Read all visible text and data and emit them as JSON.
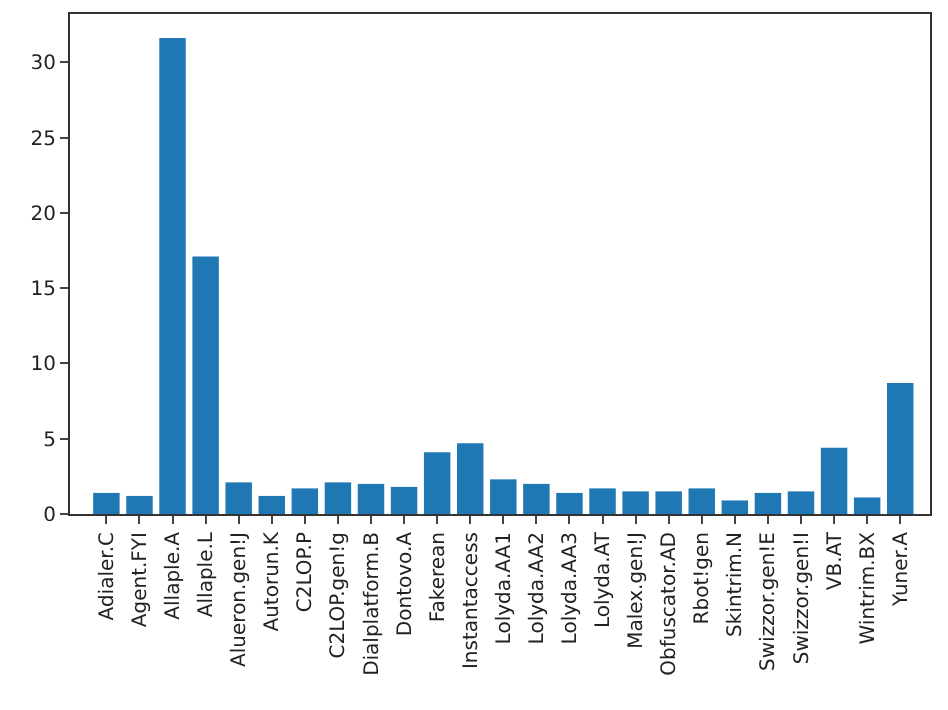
{
  "chart_data": {
    "type": "bar",
    "categories": [
      "Adialer.C",
      "Agent.FYI",
      "Allaple.A",
      "Allaple.L",
      "Alueron.gen!J",
      "Autorun.K",
      "C2LOP.P",
      "C2LOP.gen!g",
      "Dialplatform.B",
      "Dontovo.A",
      "Fakerean",
      "Instantaccess",
      "Lolyda.AA1",
      "Lolyda.AA2",
      "Lolyda.AA3",
      "Lolyda.AT",
      "Malex.gen!J",
      "Obfuscator.AD",
      "Rbot!gen",
      "Skintrim.N",
      "Swizzor.gen!E",
      "Swizzor.gen!I",
      "VB.AT",
      "Wintrim.BX",
      "Yuner.A"
    ],
    "values": [
      1.4,
      1.2,
      31.6,
      17.1,
      2.1,
      1.2,
      1.7,
      2.1,
      2.0,
      1.8,
      4.1,
      4.7,
      2.3,
      2.0,
      1.4,
      1.7,
      1.5,
      1.5,
      1.7,
      0.9,
      1.4,
      1.5,
      4.4,
      1.1,
      8.7
    ],
    "color": "#1f77b4",
    "ylim": [
      0,
      33.2
    ],
    "yticks": [
      0,
      5,
      10,
      15,
      20,
      25,
      30
    ]
  }
}
